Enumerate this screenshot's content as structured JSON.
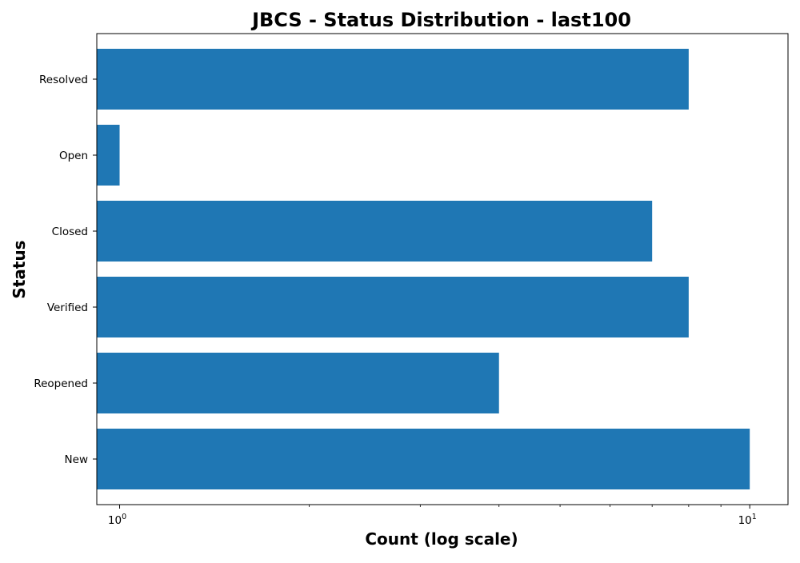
{
  "chart_data": {
    "type": "bar",
    "orientation": "horizontal",
    "title": "JBCS - Status Distribution - last100",
    "xlabel": "Count (log scale)",
    "ylabel": "Status",
    "x_scale": "log",
    "xlim": [
      0.92,
      11.5
    ],
    "x_major_ticks": [
      {
        "value": 1,
        "base": "10",
        "exponent": "0"
      },
      {
        "value": 10,
        "base": "10",
        "exponent": "1"
      }
    ],
    "x_minor_ticks": [
      2,
      3,
      4,
      5,
      6,
      7,
      8,
      9
    ],
    "grid": false,
    "legend": "none",
    "bar_color": "#1f77b4",
    "categories": [
      "Resolved",
      "Open",
      "Closed",
      "Verified",
      "Reopened",
      "New"
    ],
    "values": [
      8,
      1,
      7,
      8,
      4,
      10
    ]
  }
}
